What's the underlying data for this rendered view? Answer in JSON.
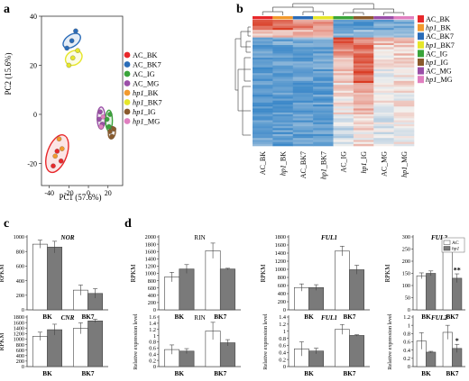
{
  "panels": {
    "a": "a",
    "b": "b",
    "c": "c",
    "d": "d"
  },
  "pca": {
    "xlabel": "PC1 (57.6%)",
    "ylabel": "PC2 (15.6%)",
    "xlim": [
      -48,
      35
    ],
    "ylim": [
      -29,
      40
    ],
    "xticks": [
      -40,
      -20,
      0,
      20
    ],
    "yticks": [
      -20,
      0,
      20,
      40
    ],
    "legend": [
      {
        "name": "AC_BK",
        "color": "#e8282b",
        "italic_prefix": ""
      },
      {
        "name": "AC_BK7",
        "color": "#2b6cb8",
        "italic_prefix": ""
      },
      {
        "name": "AC_IG",
        "color": "#3aa43a",
        "italic_prefix": ""
      },
      {
        "name": "AC_MG",
        "color": "#9b4fa8",
        "italic_prefix": ""
      },
      {
        "name": "hp1_BK",
        "color": "#f29a2e",
        "italic_prefix": "hp1"
      },
      {
        "name": "hp1_BK7",
        "color": "#e6e62a",
        "italic_prefix": "hp1"
      },
      {
        "name": "hp1_IG",
        "color": "#8a5a2c",
        "italic_prefix": "hp1"
      },
      {
        "name": "hp1_MG",
        "color": "#e07fc0",
        "italic_prefix": "hp1"
      }
    ],
    "points": [
      {
        "g": 0,
        "x": -32,
        "y": -15
      },
      {
        "g": 0,
        "x": -28,
        "y": -19
      },
      {
        "g": 0,
        "x": -36,
        "y": -21
      },
      {
        "g": 4,
        "x": -34,
        "y": -17
      },
      {
        "g": 4,
        "x": -30,
        "y": -10
      },
      {
        "g": 4,
        "x": -27,
        "y": -14
      },
      {
        "g": 1,
        "x": -22,
        "y": 27
      },
      {
        "g": 1,
        "x": -17,
        "y": 30
      },
      {
        "g": 1,
        "x": -13,
        "y": 34
      },
      {
        "g": 5,
        "x": -20,
        "y": 20
      },
      {
        "g": 5,
        "x": -16,
        "y": 23
      },
      {
        "g": 5,
        "x": -11,
        "y": 26
      },
      {
        "g": 3,
        "x": 11,
        "y": -2
      },
      {
        "g": 3,
        "x": 14,
        "y": -4
      },
      {
        "g": 3,
        "x": 12,
        "y": 1
      },
      {
        "g": 7,
        "x": 13,
        "y": -5
      },
      {
        "g": 7,
        "x": 15,
        "y": -1
      },
      {
        "g": 2,
        "x": 19,
        "y": -2
      },
      {
        "g": 2,
        "x": 22,
        "y": 0
      },
      {
        "g": 2,
        "x": 21,
        "y": -5
      },
      {
        "g": 6,
        "x": 22,
        "y": -7
      },
      {
        "g": 6,
        "x": 26,
        "y": -6
      },
      {
        "g": 6,
        "x": 24,
        "y": -9
      }
    ],
    "ellipses": [
      {
        "g": 0,
        "cx": -32,
        "cy": -16,
        "rx": 10,
        "ry": 8,
        "rot": 20
      },
      {
        "g": 1,
        "cx": -17,
        "cy": 30,
        "rx": 10,
        "ry": 2.4,
        "rot": -35
      },
      {
        "g": 5,
        "cx": -15,
        "cy": 23,
        "rx": 9,
        "ry": 2.8,
        "rot": -32
      },
      {
        "g": 3,
        "cx": 13,
        "cy": -1.5,
        "rx": 4,
        "ry": 4.5,
        "rot": 0
      },
      {
        "g": 2,
        "cx": 21,
        "cy": -2.5,
        "rx": 3.5,
        "ry": 4.2,
        "rot": 0
      },
      {
        "g": 6,
        "cx": 24,
        "cy": -7.5,
        "rx": 3.5,
        "ry": 2.5,
        "rot": 10
      }
    ]
  },
  "heatmap": {
    "columns": [
      {
        "label": "AC_BK",
        "italic_prefix": "",
        "color": "#e8282b"
      },
      {
        "label": "hp1_BK",
        "italic_prefix": "hp1",
        "color": "#f29a2e"
      },
      {
        "label": "AC_BK7",
        "italic_prefix": "",
        "color": "#2b6cb8"
      },
      {
        "label": "hp1_BK7",
        "italic_prefix": "hp1",
        "color": "#e6e62a"
      },
      {
        "label": "AC_IG",
        "italic_prefix": "",
        "color": "#3aa43a"
      },
      {
        "label": "hp1_IG",
        "italic_prefix": "hp1",
        "color": "#8a5a2c"
      },
      {
        "label": "AC_MG",
        "italic_prefix": "",
        "color": "#9b4fa8"
      },
      {
        "label": "hp1_MG",
        "italic_prefix": "hp1",
        "color": "#e07fc0"
      }
    ],
    "color_low": "#3d89c9",
    "color_mid": "#f4f1ee",
    "color_high": "#d93a22",
    "row_bands": [
      {
        "frac": 0.08,
        "values": [
          0.85,
          0.75,
          0.55,
          0.5,
          -0.8,
          -0.8,
          -0.7,
          -0.7
        ]
      },
      {
        "frac": 0.06,
        "values": [
          0.3,
          0.25,
          0.35,
          0.3,
          -0.6,
          -0.5,
          -0.5,
          -0.4
        ]
      },
      {
        "frac": 0.06,
        "values": [
          -0.7,
          -0.7,
          -0.6,
          -0.6,
          0.9,
          0.5,
          0.3,
          0.2
        ]
      },
      {
        "frac": 0.1,
        "values": [
          -0.75,
          -0.75,
          -0.7,
          -0.7,
          0.6,
          0.7,
          0.1,
          0.2
        ]
      },
      {
        "frac": 0.2,
        "values": [
          -0.8,
          -0.8,
          -0.75,
          -0.75,
          0.2,
          0.8,
          0.0,
          0.1
        ]
      },
      {
        "frac": 0.25,
        "values": [
          -0.8,
          -0.8,
          -0.8,
          -0.8,
          0.1,
          0.3,
          0.0,
          0.05
        ]
      },
      {
        "frac": 0.25,
        "values": [
          -0.75,
          -0.8,
          -0.75,
          -0.75,
          -0.2,
          0.1,
          -0.1,
          0.0
        ]
      }
    ]
  },
  "chart_data": [
    {
      "type": "bar",
      "panel": "c",
      "title": "NOR",
      "title_italic": true,
      "ylabel": "RPKM",
      "categories": [
        "BK",
        "BK7"
      ],
      "ylim": [
        0,
        1000
      ],
      "yticks": [
        0,
        200,
        400,
        600,
        800,
        1000
      ],
      "series": [
        {
          "name": "AC",
          "values": [
            900,
            270
          ],
          "errors": [
            55,
            70
          ]
        },
        {
          "name": "hp1",
          "values": [
            860,
            225
          ],
          "errors": [
            80,
            65
          ]
        }
      ]
    },
    {
      "type": "bar",
      "panel": "c",
      "title": "CNR",
      "title_italic": true,
      "ylabel": "RPKM",
      "categories": [
        "BK",
        "BK7"
      ],
      "ylim": [
        0,
        1800
      ],
      "yticks": [
        0,
        200,
        400,
        600,
        800,
        1000,
        1200,
        1400,
        1600,
        1800
      ],
      "series": [
        {
          "name": "AC",
          "values": [
            1100,
            1390
          ],
          "errors": [
            150,
            200
          ]
        },
        {
          "name": "hp1",
          "values": [
            1340,
            1660
          ],
          "errors": [
            200,
            60
          ]
        }
      ]
    },
    {
      "type": "bar",
      "panel": "d",
      "title": "RIN",
      "title_italic": false,
      "ylabel": "RPKM",
      "categories": [
        "BK",
        "BK7"
      ],
      "ylim": [
        0,
        2000
      ],
      "yticks": [
        0,
        200,
        400,
        600,
        800,
        1000,
        1200,
        1400,
        1600,
        1800,
        2000
      ],
      "series": [
        {
          "name": "AC",
          "values": [
            900,
            1620
          ],
          "errors": [
            130,
            210
          ]
        },
        {
          "name": "hp1",
          "values": [
            1120,
            1120
          ],
          "errors": [
            120,
            20
          ]
        }
      ]
    },
    {
      "type": "bar",
      "panel": "d",
      "title": "FUL1",
      "title_italic": true,
      "ylabel": "RPKM",
      "categories": [
        "BK",
        "BK7"
      ],
      "ylim": [
        0,
        1800
      ],
      "yticks": [
        0,
        200,
        400,
        600,
        800,
        1000,
        1200,
        1400,
        1600,
        1800
      ],
      "series": [
        {
          "name": "AC",
          "values": [
            550,
            1450
          ],
          "errors": [
            90,
            120
          ]
        },
        {
          "name": "hp1",
          "values": [
            550,
            990
          ],
          "errors": [
            70,
            110
          ]
        }
      ]
    },
    {
      "type": "bar",
      "panel": "d",
      "title": "FUL2",
      "title_italic": true,
      "ylabel": "RPKM",
      "categories": [
        "BK",
        "BK7"
      ],
      "ylim": [
        0,
        300
      ],
      "yticks": [
        0,
        50,
        100,
        150,
        200,
        250,
        300
      ],
      "series": [
        {
          "name": "AC",
          "values": [
            140,
            265
          ],
          "errors": [
            12,
            12
          ]
        },
        {
          "name": "hp1",
          "values": [
            150,
            130
          ],
          "errors": [
            10,
            18
          ]
        }
      ],
      "annotations": [
        {
          "category": "BK7",
          "series": "hp1",
          "text": "**"
        }
      ]
    },
    {
      "type": "bar",
      "panel": "d",
      "title": "RIN",
      "title_italic": false,
      "ylabel": "Relative expression level",
      "categories": [
        "BK",
        "BK7"
      ],
      "ylim": [
        0,
        1.6
      ],
      "yticks": [
        0,
        0.2,
        0.4,
        0.6,
        0.8,
        1.0,
        1.2,
        1.4,
        1.6
      ],
      "series": [
        {
          "name": "AC",
          "values": [
            0.55,
            1.15
          ],
          "errors": [
            0.15,
            0.28
          ]
        },
        {
          "name": "hp1",
          "values": [
            0.5,
            0.77
          ],
          "errors": [
            0.08,
            0.1
          ]
        }
      ]
    },
    {
      "type": "bar",
      "panel": "d",
      "title": "FUL1",
      "title_italic": true,
      "ylabel": "Relative expression level",
      "categories": [
        "BK",
        "BK7"
      ],
      "ylim": [
        0,
        1.4
      ],
      "yticks": [
        0,
        0.2,
        0.4,
        0.6,
        0.8,
        1.0,
        1.2,
        1.4
      ],
      "series": [
        {
          "name": "AC",
          "values": [
            0.5,
            1.05
          ],
          "errors": [
            0.2,
            0.14
          ]
        },
        {
          "name": "hp1",
          "values": [
            0.44,
            0.88
          ],
          "errors": [
            0.08,
            0.02
          ]
        }
      ]
    },
    {
      "type": "bar",
      "panel": "d",
      "title": "FUL2",
      "title_italic": true,
      "ylabel": "Relative expression level",
      "categories": [
        "BK",
        "BK7"
      ],
      "ylim": [
        0,
        1.2
      ],
      "yticks": [
        0,
        0.2,
        0.4,
        0.6,
        0.8,
        1.0,
        1.2
      ],
      "series": [
        {
          "name": "AC",
          "values": [
            0.62,
            0.83
          ],
          "errors": [
            0.2,
            0.17
          ]
        },
        {
          "name": "hp1",
          "values": [
            0.35,
            0.44
          ],
          "errors": [
            0.02,
            0.1
          ]
        }
      ],
      "annotations": [
        {
          "category": "BK7",
          "series": "hp1",
          "text": "*"
        }
      ]
    }
  ],
  "bar_legend": [
    {
      "name": "AC",
      "color": "#ffffff",
      "italic": false
    },
    {
      "name": "hp1",
      "color": "#7a7a7a",
      "italic": true
    }
  ]
}
